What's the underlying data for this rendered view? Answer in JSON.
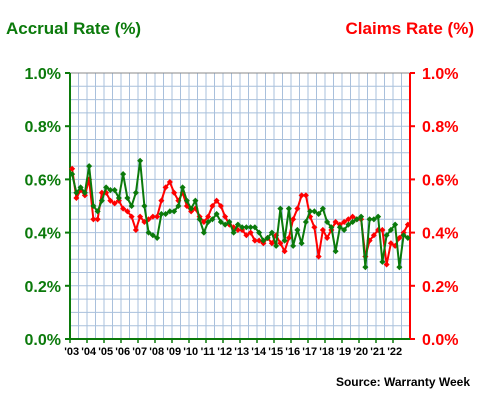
{
  "chart_data": {
    "type": "line",
    "title_left": "Accrual Rate (%)",
    "title_right": "Claims Rate (%)",
    "source": "Source: Warranty Week",
    "left_axis_color": "#0b7a0b",
    "right_axis_color": "#ff0000",
    "ylim": [
      0,
      1.0
    ],
    "y_ticks": [
      "0.0%",
      "0.2%",
      "0.4%",
      "0.6%",
      "0.8%",
      "1.0%"
    ],
    "y_tick_values": [
      0,
      0.2,
      0.4,
      0.6,
      0.8,
      1.0
    ],
    "x_tick_labels": [
      "'03",
      "'04",
      "'05",
      "'06",
      "'07",
      "'08",
      "'09",
      "'10",
      "'11",
      "'12",
      "'13",
      "'14",
      "'15",
      "'16",
      "'17",
      "'18",
      "'19",
      "'20",
      "'21",
      "'22"
    ],
    "xlim": [
      2003,
      2023
    ],
    "grid": true,
    "series": [
      {
        "color": "#0b7a0b",
        "marker": "diamond",
        "x": [
          2003.125,
          2003.375,
          2003.625,
          2003.875,
          2004.125,
          2004.375,
          2004.625,
          2004.875,
          2005.125,
          2005.375,
          2005.625,
          2005.875,
          2006.125,
          2006.375,
          2006.625,
          2006.875,
          2007.125,
          2007.375,
          2007.625,
          2007.875,
          2008.125,
          2008.375,
          2008.625,
          2008.875,
          2009.125,
          2009.375,
          2009.625,
          2009.875,
          2010.125,
          2010.375,
          2010.625,
          2010.875,
          2011.125,
          2011.375,
          2011.625,
          2011.875,
          2012.125,
          2012.375,
          2012.625,
          2012.875,
          2013.125,
          2013.375,
          2013.625,
          2013.875,
          2014.125,
          2014.375,
          2014.625,
          2014.875,
          2015.125,
          2015.375,
          2015.625,
          2015.875,
          2016.125,
          2016.375,
          2016.625,
          2016.875,
          2017.125,
          2017.375,
          2017.625,
          2017.875,
          2018.125,
          2018.375,
          2018.625,
          2018.875,
          2019.125,
          2019.375,
          2019.625,
          2019.875,
          2020.125,
          2020.375,
          2020.625,
          2020.875,
          2021.125,
          2021.375,
          2021.625,
          2021.875,
          2022.125,
          2022.375,
          2022.625,
          2022.875
        ],
        "values": [
          0.62,
          0.55,
          0.57,
          0.55,
          0.65,
          0.5,
          0.48,
          0.52,
          0.57,
          0.56,
          0.56,
          0.53,
          0.62,
          0.53,
          0.5,
          0.55,
          0.67,
          0.5,
          0.4,
          0.39,
          0.38,
          0.47,
          0.47,
          0.48,
          0.48,
          0.5,
          0.57,
          0.52,
          0.49,
          0.52,
          0.45,
          0.4,
          0.44,
          0.45,
          0.47,
          0.44,
          0.43,
          0.44,
          0.4,
          0.43,
          0.42,
          0.42,
          0.42,
          0.42,
          0.4,
          0.37,
          0.38,
          0.4,
          0.35,
          0.49,
          0.37,
          0.49,
          0.35,
          0.41,
          0.36,
          0.44,
          0.48,
          0.48,
          0.47,
          0.49,
          0.44,
          0.42,
          0.33,
          0.42,
          0.41,
          0.43,
          0.44,
          0.45,
          0.46,
          0.27,
          0.45,
          0.45,
          0.46,
          0.29,
          0.39,
          0.41,
          0.43,
          0.27,
          0.39,
          0.38
        ]
      },
      {
        "color": "#ff0000",
        "marker": "diamond",
        "x": [
          2003.125,
          2003.375,
          2003.625,
          2003.875,
          2004.125,
          2004.375,
          2004.625,
          2004.875,
          2005.125,
          2005.375,
          2005.625,
          2005.875,
          2006.125,
          2006.375,
          2006.625,
          2006.875,
          2007.125,
          2007.375,
          2007.625,
          2007.875,
          2008.125,
          2008.375,
          2008.625,
          2008.875,
          2009.125,
          2009.375,
          2009.625,
          2009.875,
          2010.125,
          2010.375,
          2010.625,
          2010.875,
          2011.125,
          2011.375,
          2011.625,
          2011.875,
          2012.125,
          2012.375,
          2012.625,
          2012.875,
          2013.125,
          2013.375,
          2013.625,
          2013.875,
          2014.125,
          2014.375,
          2014.625,
          2014.875,
          2015.125,
          2015.375,
          2015.625,
          2015.875,
          2016.125,
          2016.375,
          2016.625,
          2016.875,
          2017.125,
          2017.375,
          2017.625,
          2017.875,
          2018.125,
          2018.375,
          2018.625,
          2018.875,
          2019.125,
          2019.375,
          2019.625,
          2019.875,
          2020.125,
          2020.375,
          2020.625,
          2020.875,
          2021.125,
          2021.375,
          2021.625,
          2021.875,
          2022.125,
          2022.375,
          2022.625,
          2022.875
        ],
        "values": [
          0.64,
          0.53,
          0.56,
          0.54,
          0.6,
          0.45,
          0.45,
          0.55,
          0.55,
          0.52,
          0.51,
          0.52,
          0.49,
          0.48,
          0.46,
          0.41,
          0.46,
          0.44,
          0.45,
          0.46,
          0.46,
          0.52,
          0.57,
          0.59,
          0.55,
          0.52,
          0.55,
          0.5,
          0.48,
          0.49,
          0.46,
          0.44,
          0.46,
          0.5,
          0.52,
          0.5,
          0.46,
          0.43,
          0.42,
          0.41,
          0.41,
          0.39,
          0.4,
          0.37,
          0.37,
          0.36,
          0.38,
          0.36,
          0.39,
          0.36,
          0.33,
          0.38,
          0.45,
          0.49,
          0.54,
          0.54,
          0.46,
          0.42,
          0.31,
          0.41,
          0.38,
          0.41,
          0.44,
          0.43,
          0.44,
          0.45,
          0.46,
          0.45,
          0.45,
          0.31,
          0.37,
          0.39,
          0.41,
          0.41,
          0.28,
          0.36,
          0.35,
          0.38,
          0.4,
          0.43
        ]
      }
    ]
  }
}
